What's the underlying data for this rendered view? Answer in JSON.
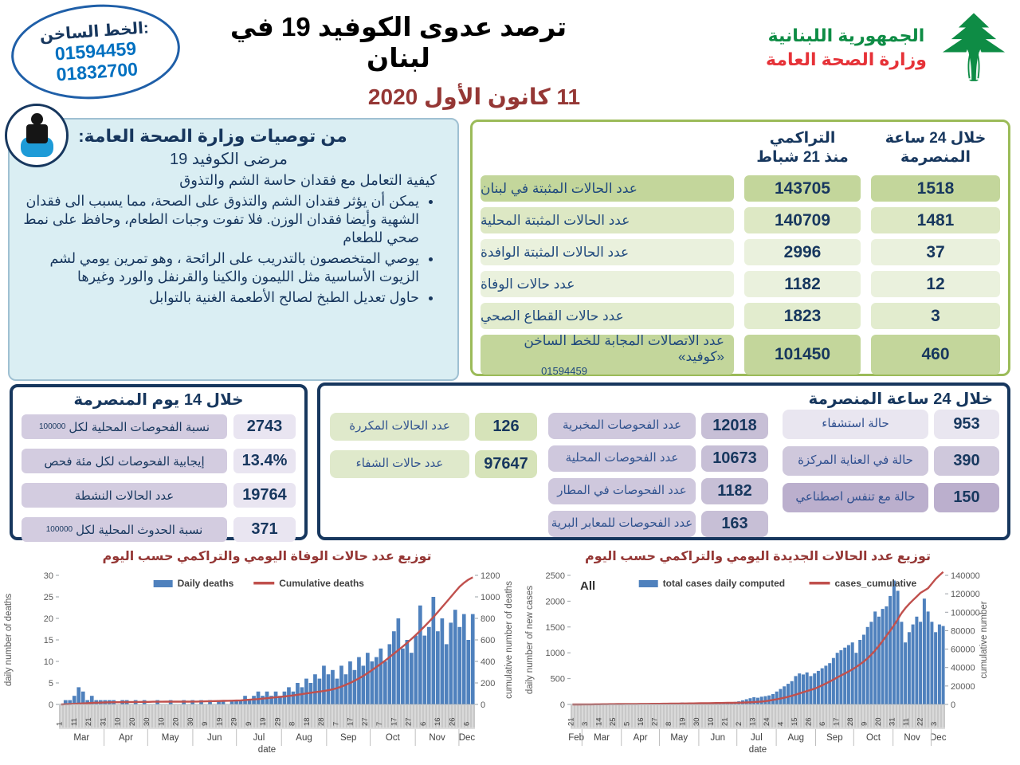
{
  "header": {
    "hotline": {
      "label": "الخط الساخن:",
      "numbers": [
        "01594459",
        "01832700"
      ]
    },
    "title": "ترصد عدوى الكوفيد 19 في لبنان",
    "date": "11 كانون الأول 2020",
    "ministry": {
      "line1": "الجمهورية اللبنانية",
      "line2": "وزارة الصحة العامة"
    }
  },
  "colors": {
    "navy": "#17375e",
    "date_red": "#953735",
    "green_border": "#9bbb59",
    "bar_blue": "#4f81bd",
    "line_red": "#c0504d",
    "logo_green": "#0e8c45",
    "logo_red": "#e63238",
    "hotline_blue": "#0070c0"
  },
  "recommendations": {
    "title": "من توصيات وزارة الصحة العامة:",
    "subtitle": "مرضى الكوفيد 19",
    "intro": "كيفية التعامل مع فقدان حاسة الشم والتذوق",
    "bullets": [
      "يمكن أن يؤثر فقدان الشم والتذوق على الصحة، مما يسبب الى فقدان الشهية وأيضا فقدان الوزن. فلا تفوت وجبات الطعام، وحافظ على نمط صحي للطعام",
      "يوصي المتخصصون بالتدريب على الرائحة ، وهو تمرين يومي لشم الزيوت الأساسية مثل الليمون والكينا والقرنفل والورد وغيرها",
      "حاول تعديل الطبخ لصالح الأطعمة الغنية بالتوابل"
    ]
  },
  "stats_table": {
    "col_cum": "التراكمي\nمنذ 21 شباط",
    "col_24h": "خلال 24 ساعة\nالمنصرمة",
    "rows": [
      {
        "label": "عدد الحالات المثبتة في لبنان",
        "cum": "143705",
        "h24": "1518",
        "shade": "dark"
      },
      {
        "label": "عدد الحالات المثبتة المحلية",
        "cum": "140709",
        "h24": "1481",
        "shade": "m1"
      },
      {
        "label": "عدد الحالات المثبتة الوافدة",
        "cum": "2996",
        "h24": "37",
        "shade": "l"
      },
      {
        "label": "عدد حالات الوفاة",
        "cum": "1182",
        "h24": "12",
        "shade": "l"
      },
      {
        "label": "عدد حالات القطاع الصحي",
        "cum": "1823",
        "h24": "3",
        "shade": "m2"
      },
      {
        "label": "عدد الاتصالات المجابة  للخط الساخن «كوفيد»",
        "label2": "01594459",
        "cum": "101450",
        "h24": "460",
        "shade": "dark"
      }
    ]
  },
  "box14": {
    "title": "خلال 14 يوم المنصرمة",
    "rows": [
      {
        "label": "نسبة الفحوصات  المحلية لكل",
        "suffix": "100000",
        "value": "2743"
      },
      {
        "label": "إيجابية الفحوصات لكل مئة فحص",
        "value": "13.4%"
      },
      {
        "label": "عدد الحالات النشطة",
        "value": "19764"
      },
      {
        "label": "نسبة الحدوث المحلية لكل",
        "suffix": "100000",
        "value": "371"
      }
    ]
  },
  "box24": {
    "title": "خلال 24 ساعة المنصرمة",
    "green_rows": [
      {
        "label": "عدد الحالات المكررة",
        "value": "126"
      },
      {
        "label": "عدد حالات الشفاء",
        "value": "97647"
      }
    ],
    "test_rows": [
      {
        "label": "عدد الفحوصات المخبرية",
        "value": "12018"
      },
      {
        "label": "عدد الفحوصات المحلية",
        "value": "10673"
      },
      {
        "label": "عدد الفحوصات في المطار",
        "value": "1182"
      },
      {
        "label": "عدد الفحوصات للمعابر البرية",
        "value": "163"
      }
    ],
    "hospital_rows": [
      {
        "label": "حالة استشفاء",
        "value": "953",
        "shade": 0
      },
      {
        "label": "حالة في العناية المركزة",
        "value": "390",
        "shade": 1
      },
      {
        "label": "حالة مع تنفس اصطناعي",
        "value": "150",
        "shade": 2
      }
    ]
  },
  "chart_data": [
    {
      "type": "bar+line",
      "title": "توزيع عدد حالات  الوفاة اليومي والتراكمي حسب اليوم",
      "title_color": "#953735",
      "legend": [
        {
          "label": "Daily deaths",
          "kind": "bar",
          "color": "#4f81bd"
        },
        {
          "label": "Cumulative deaths",
          "kind": "line",
          "color": "#c0504d"
        }
      ],
      "left_axis": {
        "title": "daily number of deaths",
        "ticks": [
          0,
          5,
          10,
          15,
          20,
          25,
          30
        ],
        "max": 30
      },
      "right_axis": {
        "title": "cumulative number of deaths",
        "ticks": [
          0,
          200,
          400,
          600,
          800,
          1000,
          1200
        ],
        "max": 1200
      },
      "x_axis": {
        "title": "date",
        "day_tick_step": 10,
        "day_tick_labels": [
          "1",
          "11",
          "21",
          "31",
          "10",
          "20",
          "30",
          "10",
          "20",
          "30",
          "9",
          "19",
          "29",
          "9",
          "19",
          "29",
          "8",
          "18",
          "28",
          "7",
          "17",
          "27",
          "7",
          "17",
          "27",
          "6",
          "16",
          "26",
          "6"
        ],
        "months": [
          {
            "label": "Mar",
            "days": 31
          },
          {
            "label": "Apr",
            "days": 30
          },
          {
            "label": "May",
            "days": 31
          },
          {
            "label": "Jun",
            "days": 30
          },
          {
            "label": "Jul",
            "days": 31
          },
          {
            "label": "Aug",
            "days": 31
          },
          {
            "label": "Sep",
            "days": 30
          },
          {
            "label": "Oct",
            "days": 31
          },
          {
            "label": "Nov",
            "days": 30
          },
          {
            "label": "Dec",
            "days": 11
          }
        ]
      },
      "bars": {
        "name": "Daily deaths",
        "values": [
          0,
          1,
          1,
          2,
          4,
          3,
          1,
          2,
          1,
          1,
          1,
          1,
          1,
          0,
          1,
          1,
          0,
          1,
          0,
          1,
          0,
          0,
          1,
          0,
          0,
          1,
          0,
          0,
          1,
          0,
          1,
          0,
          1,
          0,
          1,
          0,
          1,
          1,
          0,
          1,
          1,
          1,
          2,
          1,
          2,
          3,
          2,
          3,
          2,
          3,
          2,
          3,
          4,
          3,
          5,
          4,
          6,
          5,
          7,
          6,
          9,
          7,
          8,
          6,
          9,
          7,
          10,
          8,
          11,
          9,
          12,
          10,
          11,
          13,
          10,
          14,
          17,
          20,
          13,
          15,
          12,
          16,
          23,
          16,
          18,
          25,
          17,
          20,
          14,
          19,
          22,
          18,
          21,
          15,
          21
        ]
      },
      "line": {
        "name": "Cumulative deaths",
        "values": [
          0,
          2,
          4,
          6,
          8,
          10,
          12,
          14,
          16,
          17,
          19,
          20,
          21,
          21,
          22,
          22,
          23,
          23,
          24,
          24,
          24,
          25,
          25,
          25,
          26,
          26,
          26,
          26,
          26,
          26,
          27,
          27,
          28,
          29,
          30,
          31,
          32,
          33,
          34,
          35,
          36,
          38,
          41,
          44,
          47,
          50,
          54,
          58,
          62,
          66,
          70,
          74,
          79,
          84,
          90,
          96,
          102,
          108,
          114,
          119,
          125,
          132,
          140,
          152,
          166,
          182,
          200,
          220,
          242,
          266,
          292,
          320,
          348,
          378,
          408,
          440,
          472,
          505,
          538,
          572,
          608,
          645,
          685,
          726,
          768,
          812,
          858,
          905,
          952,
          1000,
          1048,
          1095,
          1130,
          1160,
          1182
        ]
      }
    },
    {
      "type": "bar+line",
      "title": "توزيع عدد الحالات الجديدة اليومي والتراكمي حسب اليوم",
      "title_color": "#953735",
      "corner_label": "All",
      "legend": [
        {
          "label": "total cases daily computed",
          "kind": "bar",
          "color": "#4f81bd"
        },
        {
          "label": "cases_cumulative",
          "kind": "line",
          "color": "#c0504d"
        }
      ],
      "left_axis": {
        "title": "daily number of new cases",
        "ticks": [
          0,
          500,
          1000,
          1500,
          2000,
          2500
        ],
        "max": 2500
      },
      "right_axis": {
        "title": "cumulative number",
        "ticks": [
          0,
          20000,
          40000,
          60000,
          80000,
          100000,
          120000,
          140000
        ],
        "max": 140000
      },
      "x_axis": {
        "title": "date",
        "day_tick_step": 11,
        "day_tick_labels": [
          "21",
          "3",
          "14",
          "25",
          "5",
          "16",
          "27",
          "8",
          "19",
          "30",
          "10",
          "21",
          "2",
          "13",
          "24",
          "4",
          "15",
          "26",
          "6",
          "17",
          "28",
          "9",
          "20",
          "31",
          "11",
          "22",
          "3"
        ],
        "months": [
          {
            "label": "Feb",
            "days": 9
          },
          {
            "label": "Mar",
            "days": 31
          },
          {
            "label": "Apr",
            "days": 30
          },
          {
            "label": "May",
            "days": 31
          },
          {
            "label": "Jun",
            "days": 30
          },
          {
            "label": "Jul",
            "days": 31
          },
          {
            "label": "Aug",
            "days": 31
          },
          {
            "label": "Sep",
            "days": 30
          },
          {
            "label": "Oct",
            "days": 31
          },
          {
            "label": "Nov",
            "days": 30
          },
          {
            "label": "Dec",
            "days": 11
          }
        ]
      },
      "bars": {
        "name": "total cases daily computed",
        "values": [
          1,
          2,
          3,
          5,
          8,
          10,
          12,
          15,
          12,
          14,
          10,
          12,
          15,
          10,
          12,
          8,
          10,
          12,
          15,
          18,
          20,
          15,
          12,
          10,
          8,
          12,
          15,
          25,
          30,
          35,
          20,
          15,
          10,
          15,
          20,
          25,
          30,
          20,
          15,
          25,
          35,
          40,
          45,
          50,
          60,
          80,
          100,
          120,
          140,
          130,
          150,
          160,
          175,
          200,
          250,
          300,
          350,
          400,
          450,
          550,
          600,
          580,
          620,
          550,
          600,
          650,
          700,
          750,
          800,
          900,
          1000,
          1050,
          1100,
          1150,
          1200,
          1000,
          1250,
          1350,
          1500,
          1600,
          1800,
          1700,
          1850,
          1900,
          2100,
          2400,
          2200,
          1600,
          1200,
          1400,
          1550,
          1700,
          1600,
          2050,
          1800,
          1600,
          1400,
          1550,
          1518
        ]
      },
      "line": {
        "name": "cases_cumulative",
        "values": [
          2,
          8,
          20,
          45,
          80,
          120,
          165,
          210,
          255,
          300,
          340,
          380,
          415,
          450,
          480,
          505,
          530,
          555,
          580,
          605,
          630,
          655,
          685,
          720,
          760,
          800,
          845,
          890,
          940,
          995,
          1050,
          1100,
          1150,
          1200,
          1260,
          1320,
          1385,
          1450,
          1520,
          1590,
          1660,
          1720,
          1770,
          1820,
          1900,
          2020,
          2170,
          2350,
          2570,
          2830,
          3140,
          3500,
          4150,
          4900,
          5600,
          6400,
          7300,
          8300,
          9400,
          10600,
          11900,
          13300,
          14500,
          15800,
          17000,
          18800,
          20700,
          22700,
          24800,
          27000,
          29300,
          31400,
          33500,
          35700,
          38000,
          40500,
          43500,
          46500,
          50000,
          54000,
          58500,
          63500,
          69000,
          74500,
          80000,
          86000,
          92500,
          99000,
          104500,
          109000,
          113000,
          117000,
          121000,
          123500,
          126000,
          131000,
          136000,
          140000,
          143705
        ]
      }
    }
  ]
}
